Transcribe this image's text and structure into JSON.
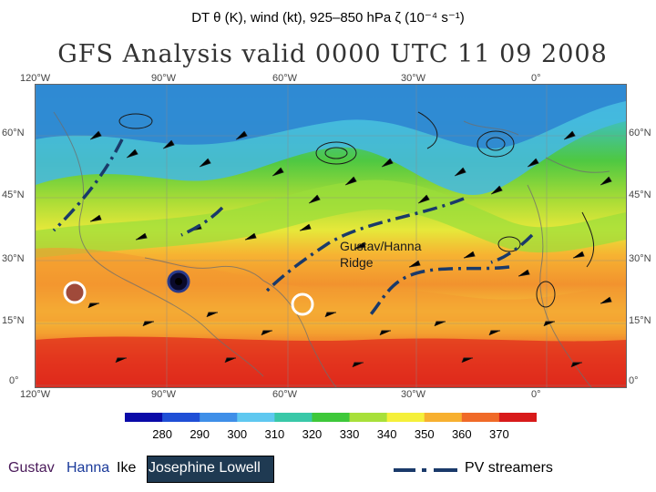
{
  "caption": {
    "text": "DT θ (K), wind (kt), 925–850 hPa ζ (10⁻⁴ s⁻¹)"
  },
  "map": {
    "title": "GFS Analysis valid 0000 UTC 11 09 2008",
    "lon_labels": [
      "120°W",
      "90°W",
      "60°W",
      "30°W",
      "0°"
    ],
    "lat_labels_left": [
      "60°N",
      "45°N",
      "30°N",
      "15°N",
      "0°"
    ],
    "lat_labels_right": [
      "60°N",
      "45°N",
      "30°N",
      "15°N",
      "0°"
    ],
    "annotation": {
      "line1": "Gustav/Hanna",
      "line2": "Ridge"
    }
  },
  "colorbar": {
    "ticks": [
      "280",
      "290",
      "300",
      "310",
      "320",
      "330",
      "340",
      "350",
      "360",
      "370"
    ],
    "colors": [
      "#0a0aa8",
      "#1f4fd6",
      "#3f8fe8",
      "#5fc8f0",
      "#39c8a8",
      "#3ec83a",
      "#a8e03a",
      "#f5f03a",
      "#f7b030",
      "#f06a28",
      "#d81a1a"
    ]
  },
  "legend": {
    "gustav": "Gustav",
    "hanna": "Hanna",
    "ike": "Ike",
    "josephine_lowell": "Josephine Lowell",
    "pv_streamers": "PV streamers",
    "colors": {
      "gustav": "#4a1a5a",
      "hanna": "#1a3a9a",
      "ike": "#000000",
      "jl_box": "#1f3a52"
    }
  }
}
